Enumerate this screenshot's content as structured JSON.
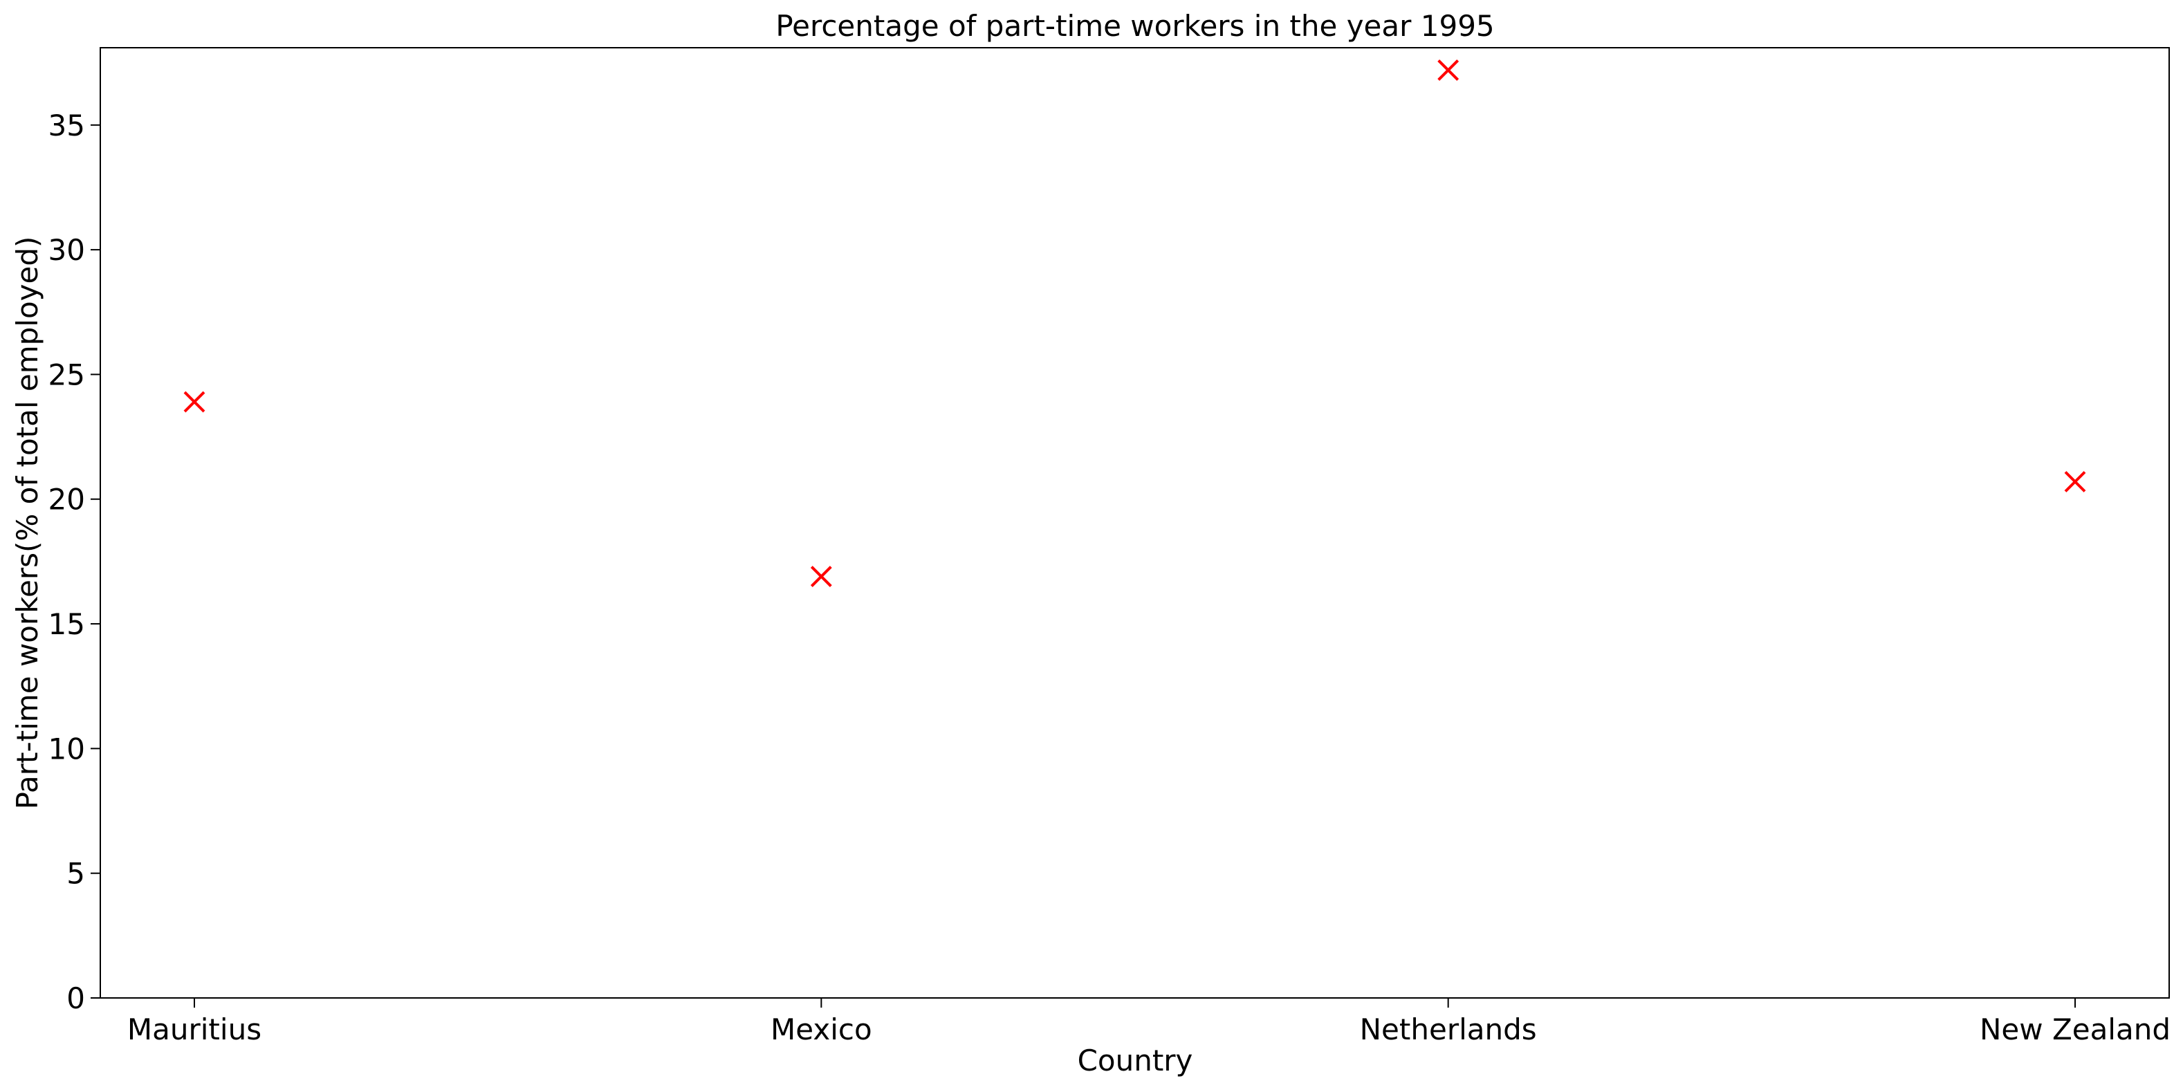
{
  "chart_data": {
    "type": "scatter",
    "title": "Percentage of part-time workers in the year 1995",
    "xlabel": "Country",
    "ylabel": "Part-time workers(% of total employed)",
    "categories": [
      "Mauritius",
      "Mexico",
      "Netherlands",
      "New Zealand"
    ],
    "values": [
      23.9,
      16.9,
      37.2,
      20.7
    ],
    "yticks": [
      "0",
      "5",
      "10",
      "15",
      "20",
      "25",
      "30",
      "35"
    ],
    "ylim": [
      0,
      38.1
    ],
    "marker": "x",
    "marker_color": "#ff0000",
    "grid": false,
    "legend": "none"
  }
}
